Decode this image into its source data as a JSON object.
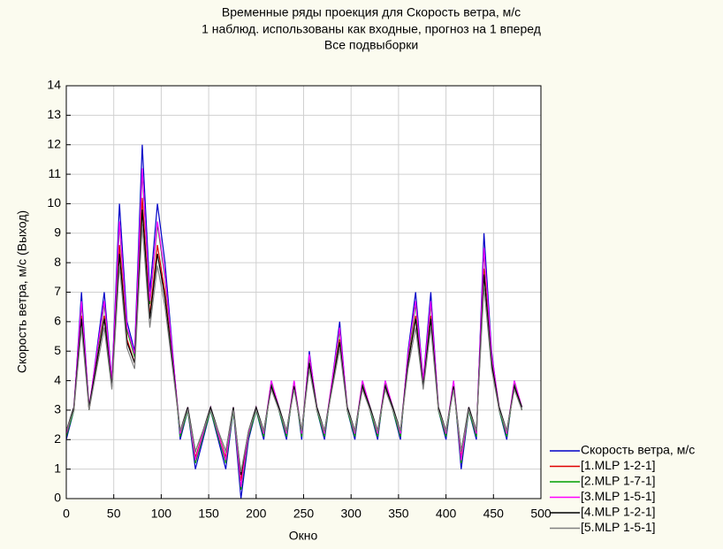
{
  "chart_data": {
    "type": "line",
    "title": [
      "Временные ряды проекция для Скорость ветра, м/с",
      "1 наблюд. использованы как входные, прогноз на 1 вперед",
      "Все подвыборки"
    ],
    "xlabel": "Окно",
    "ylabel": "Скорость ветра, м/с (Выход)",
    "xlim": [
      0,
      500
    ],
    "ylim": [
      0,
      14
    ],
    "xticks": [
      0,
      50,
      100,
      150,
      200,
      250,
      300,
      350,
      400,
      450,
      500
    ],
    "yticks": [
      0,
      1,
      2,
      3,
      4,
      5,
      6,
      7,
      8,
      9,
      10,
      11,
      12,
      13,
      14
    ],
    "grid": true,
    "legend": "lower-right-outside",
    "x": [
      0,
      8,
      16,
      24,
      32,
      40,
      48,
      56,
      64,
      72,
      80,
      88,
      96,
      104,
      112,
      120,
      128,
      136,
      144,
      152,
      160,
      168,
      176,
      184,
      192,
      200,
      208,
      216,
      224,
      232,
      240,
      248,
      256,
      264,
      272,
      280,
      288,
      296,
      304,
      312,
      320,
      328,
      336,
      344,
      352,
      360,
      368,
      376,
      384,
      392,
      400,
      408,
      416,
      424,
      432,
      440,
      448,
      456,
      464,
      472,
      480
    ],
    "series": [
      {
        "name": "Скорость ветра, м/с",
        "color": "#0000c8",
        "values": [
          2,
          3,
          7,
          3,
          5,
          7,
          4,
          10,
          6,
          5,
          12,
          7,
          10,
          8,
          5,
          2,
          3,
          1,
          2,
          3,
          2,
          1,
          3,
          0,
          2,
          3,
          2,
          4,
          3,
          2,
          4,
          2,
          5,
          3,
          2,
          4,
          6,
          3,
          2,
          4,
          3,
          2,
          4,
          3,
          2,
          5,
          7,
          4,
          7,
          3,
          2,
          4,
          1,
          3,
          2,
          9,
          5,
          3,
          2,
          4,
          3
        ]
      },
      {
        "name": "[1.MLP 1-2-1]",
        "color": "#e00000",
        "values": [
          2.2,
          3.0,
          6.2,
          3.0,
          4.6,
          6.2,
          3.8,
          8.6,
          5.4,
          4.6,
          10.2,
          6.2,
          8.6,
          7.0,
          4.6,
          2.2,
          3.0,
          1.4,
          2.2,
          3.0,
          2.2,
          1.4,
          3.0,
          0.6,
          2.2,
          3.0,
          2.2,
          3.8,
          3.0,
          2.2,
          3.8,
          2.2,
          4.6,
          3.0,
          2.2,
          3.8,
          5.4,
          3.0,
          2.2,
          3.8,
          3.0,
          2.2,
          3.8,
          3.0,
          2.2,
          4.6,
          6.2,
          3.8,
          6.2,
          3.0,
          2.2,
          3.8,
          1.4,
          3.0,
          2.2,
          7.8,
          4.6,
          3.0,
          2.2,
          3.8,
          3.0
        ]
      },
      {
        "name": "[2.MLP 1-7-1]",
        "color": "#00a000",
        "values": [
          2.1,
          3.0,
          6.6,
          3.0,
          4.8,
          6.6,
          3.9,
          9.3,
          5.7,
          4.8,
          11.1,
          6.6,
          9.3,
          7.5,
          4.8,
          2.1,
          3.0,
          1.2,
          2.1,
          3.0,
          2.1,
          1.2,
          3.0,
          0.3,
          2.1,
          3.0,
          2.1,
          3.9,
          3.0,
          2.1,
          3.9,
          2.1,
          4.8,
          3.0,
          2.1,
          3.9,
          5.7,
          3.0,
          2.1,
          3.9,
          3.0,
          2.1,
          3.9,
          3.0,
          2.1,
          4.8,
          6.6,
          3.9,
          6.6,
          3.0,
          2.1,
          3.9,
          1.2,
          3.0,
          2.1,
          8.4,
          4.8,
          3.0,
          2.1,
          3.9,
          3.0
        ]
      },
      {
        "name": "[3.MLP 1-5-1]",
        "color": "#ff00ff",
        "values": [
          2.2,
          3.1,
          6.7,
          3.1,
          4.9,
          6.7,
          4.0,
          9.4,
          5.8,
          4.9,
          11.2,
          6.7,
          9.4,
          7.6,
          4.9,
          2.2,
          3.1,
          1.3,
          2.2,
          3.1,
          2.2,
          1.3,
          3.1,
          0.4,
          2.2,
          3.1,
          2.2,
          4.0,
          3.1,
          2.2,
          4.0,
          2.2,
          4.9,
          3.1,
          2.2,
          4.0,
          5.8,
          3.1,
          2.2,
          4.0,
          3.1,
          2.2,
          4.0,
          3.1,
          2.2,
          4.9,
          6.7,
          4.0,
          6.7,
          3.1,
          2.2,
          4.0,
          1.3,
          3.1,
          2.2,
          8.5,
          4.9,
          3.1,
          2.2,
          4.0,
          3.1
        ]
      },
      {
        "name": "[4.MLP 1-2-1]",
        "color": "#000000",
        "values": [
          2.3,
          3.1,
          6.1,
          3.1,
          4.6,
          6.1,
          3.8,
          8.3,
          5.3,
          4.6,
          9.8,
          6.1,
          8.3,
          6.8,
          4.6,
          2.3,
          3.1,
          1.6,
          2.3,
          3.1,
          2.3,
          1.6,
          3.1,
          0.8,
          2.3,
          3.1,
          2.3,
          3.8,
          3.1,
          2.3,
          3.8,
          2.3,
          4.6,
          3.1,
          2.3,
          3.8,
          5.3,
          3.1,
          2.3,
          3.8,
          3.1,
          2.3,
          3.8,
          3.1,
          2.3,
          4.6,
          6.1,
          3.8,
          6.1,
          3.1,
          2.3,
          3.8,
          1.6,
          3.1,
          2.3,
          7.6,
          4.6,
          3.1,
          2.3,
          3.8,
          3.1
        ]
      },
      {
        "name": "[5.MLP 1-5-1]",
        "color": "#808080",
        "values": [
          2.3,
          3.0,
          5.8,
          3.0,
          4.4,
          5.8,
          3.7,
          7.9,
          5.1,
          4.4,
          9.3,
          5.8,
          7.9,
          6.5,
          4.4,
          2.3,
          3.0,
          1.6,
          2.3,
          3.0,
          2.3,
          1.6,
          3.0,
          0.9,
          2.3,
          3.0,
          2.3,
          3.7,
          3.0,
          2.3,
          3.7,
          2.3,
          4.4,
          3.0,
          2.3,
          3.7,
          5.1,
          3.0,
          2.3,
          3.7,
          3.0,
          2.3,
          3.7,
          3.0,
          2.3,
          4.4,
          5.8,
          3.7,
          5.8,
          3.0,
          2.3,
          3.7,
          1.6,
          3.0,
          2.3,
          7.2,
          4.4,
          3.0,
          2.3,
          3.7,
          3.0
        ]
      }
    ]
  }
}
